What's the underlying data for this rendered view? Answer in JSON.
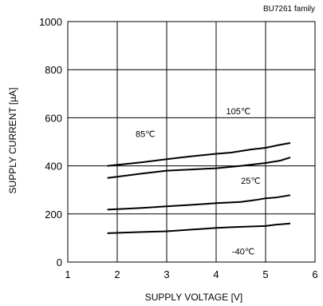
{
  "chart_data": {
    "type": "line",
    "title": "",
    "note": "BU7261 family",
    "xlabel": "SUPPLY VOLTAGE [V]",
    "ylabel": "SUPPLY CURRENT [µA]",
    "xlim": [
      1,
      6
    ],
    "ylim": [
      0,
      1000
    ],
    "x_ticks": [
      1,
      2,
      3,
      4,
      5,
      6
    ],
    "y_ticks": [
      0,
      200,
      400,
      600,
      800,
      1000
    ],
    "grid": true,
    "series": [
      {
        "name": "105℃",
        "x": [
          1.8,
          2.5,
          3.0,
          3.5,
          4.0,
          4.3,
          4.7,
          5.0,
          5.3,
          5.5
        ],
        "y": [
          400,
          415,
          428,
          440,
          450,
          455,
          468,
          475,
          488,
          495
        ]
      },
      {
        "name": "85℃",
        "x": [
          1.8,
          2.5,
          3.0,
          3.5,
          4.0,
          4.5,
          5.0,
          5.3,
          5.5
        ],
        "y": [
          350,
          368,
          380,
          385,
          390,
          400,
          412,
          422,
          435
        ]
      },
      {
        "name": "25℃",
        "x": [
          1.8,
          2.5,
          3.0,
          3.5,
          4.0,
          4.5,
          4.8,
          5.0,
          5.2,
          5.5
        ],
        "y": [
          218,
          225,
          232,
          238,
          245,
          250,
          258,
          265,
          268,
          278
        ]
      },
      {
        "name": "-40℃",
        "x": [
          1.8,
          2.5,
          3.0,
          3.5,
          4.0,
          4.3,
          4.7,
          5.0,
          5.2,
          5.5
        ],
        "y": [
          120,
          125,
          128,
          135,
          142,
          145,
          148,
          150,
          155,
          160
        ]
      }
    ],
    "annotations": [
      {
        "text": "105℃",
        "x": 4.45,
        "y": 615
      },
      {
        "text": "85℃",
        "x": 2.57,
        "y": 520
      },
      {
        "text": "25℃",
        "x": 4.7,
        "y": 325
      },
      {
        "text": "-40℃",
        "x": 4.55,
        "y": 32
      }
    ]
  }
}
